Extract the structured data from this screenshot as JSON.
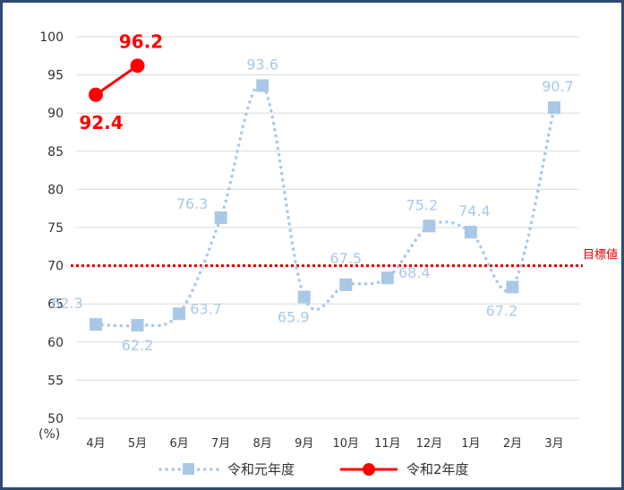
{
  "chart_data": {
    "type": "line",
    "categories": [
      "4月",
      "5月",
      "6月",
      "7月",
      "8月",
      "9月",
      "10月",
      "11月",
      "12月",
      "1月",
      "2月",
      "3月"
    ],
    "yunit": "(%)",
    "ylim": [
      50,
      100
    ],
    "yticks": [
      50,
      55,
      60,
      65,
      70,
      75,
      80,
      85,
      90,
      95,
      100
    ],
    "grid": true,
    "legend_position": "bottom",
    "series": [
      {
        "name": "令和元年度",
        "style": "dotted-line-square-markers",
        "color": "#a9c8e8",
        "values": [
          62.3,
          62.2,
          63.7,
          76.3,
          93.6,
          65.9,
          67.5,
          68.4,
          75.2,
          74.4,
          67.2,
          90.7
        ]
      },
      {
        "name": "令和2年度",
        "style": "solid-line-circle-markers",
        "color": "#ff0000",
        "values": [
          92.4,
          96.2,
          null,
          null,
          null,
          null,
          null,
          null,
          null,
          null,
          null,
          null
        ]
      }
    ],
    "reference_line": {
      "label": "目標値",
      "value": 70,
      "color": "#e00000"
    }
  }
}
